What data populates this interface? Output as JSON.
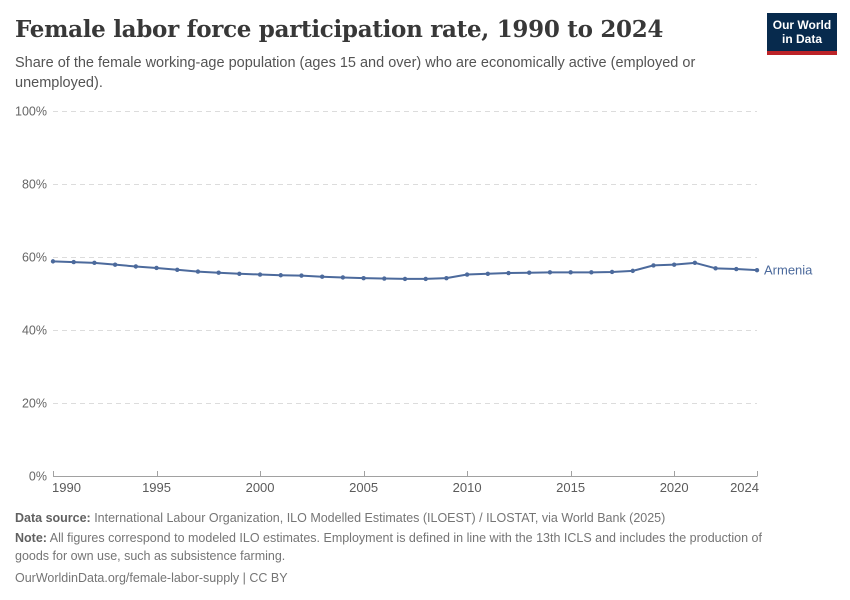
{
  "header": {
    "title": "Female labor force participation rate, 1990 to 2024",
    "subtitle": "Share of the female working-age population (ages 15 and over) who are economically active (employed or unemployed).",
    "logo": {
      "line1": "Our World",
      "line2": "in Data"
    }
  },
  "chart_data": {
    "type": "line",
    "title": "Female labor force participation rate, 1990 to 2024",
    "xlabel": "",
    "ylabel": "",
    "xlim": [
      1990,
      2024
    ],
    "ylim": [
      0,
      100
    ],
    "grid": "horizontal-dashed",
    "legend_position": "end-of-line-label",
    "x": [
      1990,
      1991,
      1992,
      1993,
      1994,
      1995,
      1996,
      1997,
      1998,
      1999,
      2000,
      2001,
      2002,
      2003,
      2004,
      2005,
      2006,
      2007,
      2008,
      2009,
      2010,
      2011,
      2012,
      2013,
      2014,
      2015,
      2016,
      2017,
      2018,
      2019,
      2020,
      2021,
      2022,
      2023,
      2024
    ],
    "series": [
      {
        "name": "Armenia",
        "color": "#4C6A9C",
        "values": [
          58.8,
          58.6,
          58.4,
          57.9,
          57.4,
          57.0,
          56.5,
          56.0,
          55.7,
          55.4,
          55.2,
          55.0,
          54.9,
          54.6,
          54.4,
          54.2,
          54.1,
          54.0,
          54.0,
          54.2,
          55.2,
          55.4,
          55.6,
          55.7,
          55.8,
          55.8,
          55.8,
          55.9,
          56.2,
          57.7,
          57.9,
          58.4,
          56.9,
          56.7,
          56.4
        ]
      }
    ],
    "xticks": [
      1990,
      1995,
      2000,
      2005,
      2010,
      2015,
      2020,
      2024
    ],
    "yticks": [
      0,
      20,
      40,
      60,
      80,
      100
    ],
    "ytick_suffix": "%"
  },
  "footer": {
    "data_source_label": "Data source:",
    "data_source_text": " International Labour Organization, ILO Modelled Estimates (ILOEST) / ILOSTAT, via World Bank (2025)",
    "note_label": "Note:",
    "note_text": " All figures correspond to modeled ILO estimates. Employment is defined in line with the 13th ICLS and includes the production of goods for own use, such as subsistence farming.",
    "url": "OurWorldinData.org/female-labor-supply",
    "license_suffix": " | CC BY"
  },
  "colors": {
    "line": "#4C6A9C",
    "grid": "#dcdcdc",
    "axis": "#a1a1a1",
    "tick_label": "#666666",
    "title": "#383838",
    "subtitle": "#545454",
    "footer": "#757575",
    "logo_bg": "#072a4d",
    "logo_red": "#bc2328"
  }
}
